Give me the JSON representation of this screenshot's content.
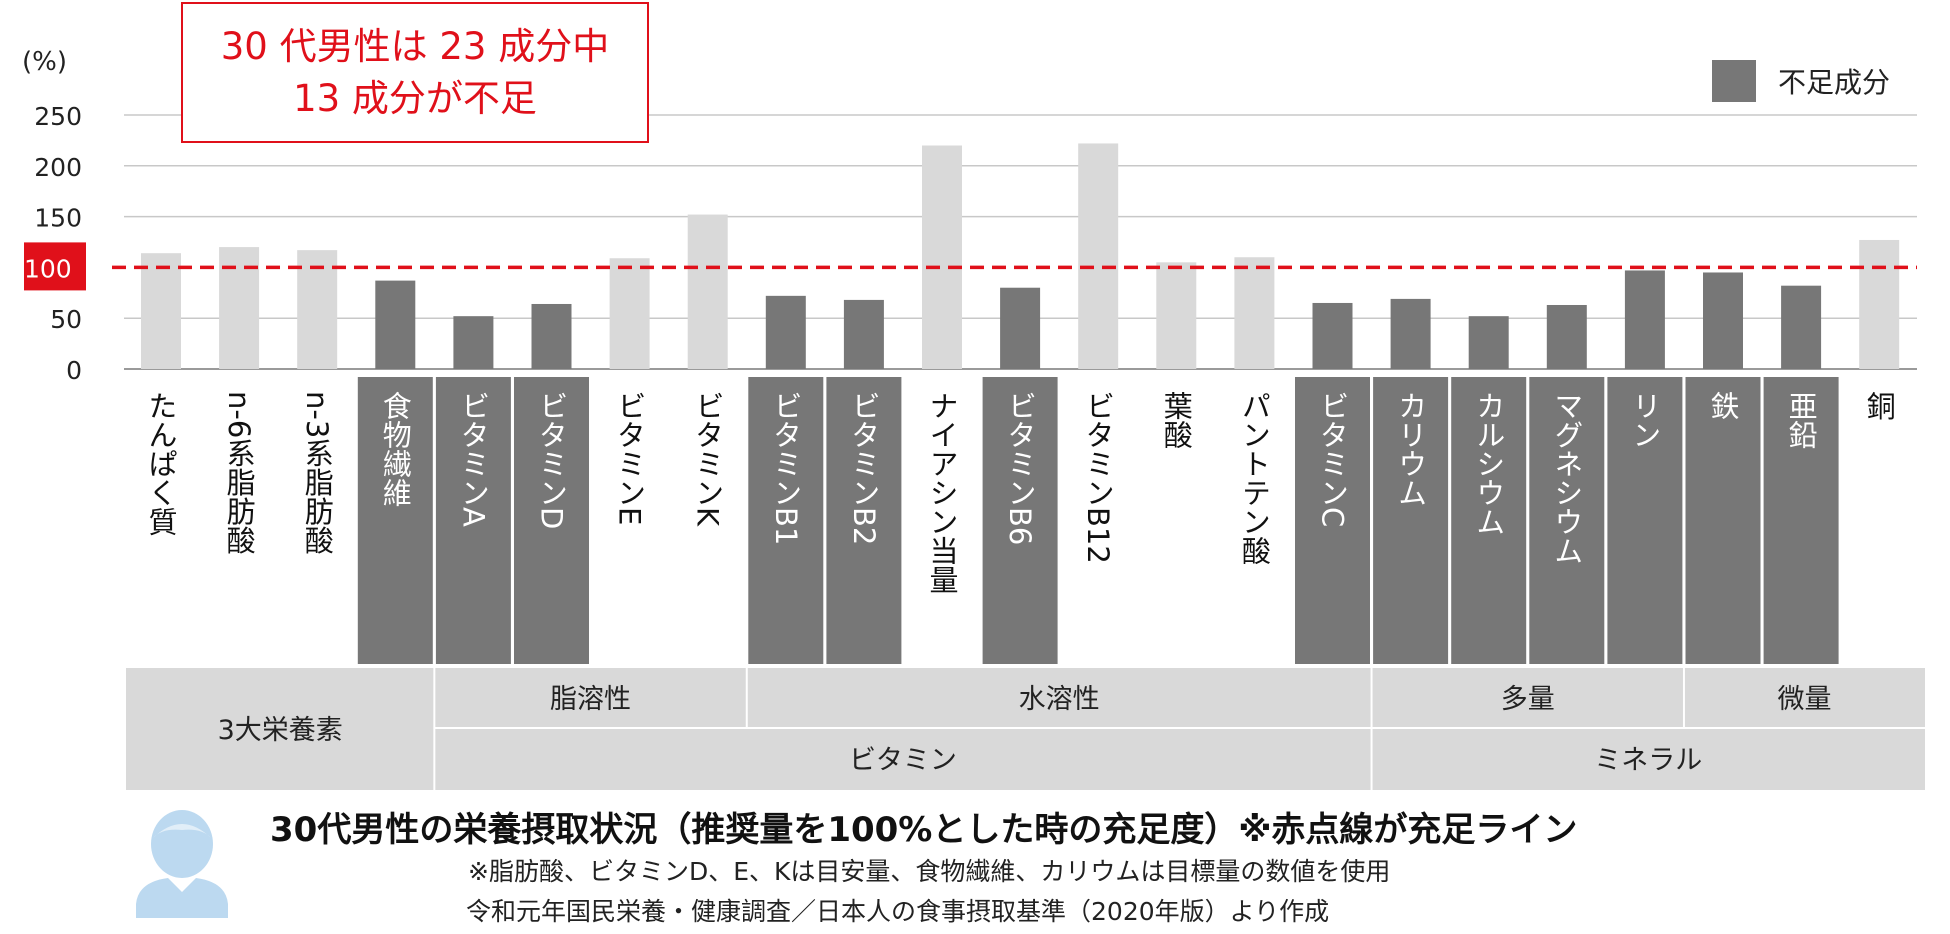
{
  "callout": {
    "line1": "30 代男性は 23 成分中",
    "line2": "13 成分が不足"
  },
  "legend": {
    "label": "不足成分"
  },
  "colors": {
    "deficient": "#777777",
    "sufficient": "#d9d9d9",
    "line": "#e0101a",
    "group_bg": "#d9d9d9"
  },
  "chart_data": {
    "type": "bar",
    "ylabel": "(%)",
    "ylim": [
      0,
      250
    ],
    "yticks": [
      "0",
      "50",
      "100",
      "150",
      "200",
      "250"
    ],
    "highlight_tick": "100",
    "reference_line": 100,
    "categories": [
      "たんぱく質",
      "n-6系脂肪酸",
      "n-3系脂肪酸",
      "食物繊維",
      "ビタミンA",
      "ビタミンD",
      "ビタミンE",
      "ビタミンK",
      "ビタミンB1",
      "ビタミンB2",
      "ナイアシン当量",
      "ビタミンB6",
      "ビタミンB12",
      "葉酸",
      "パントテン酸",
      "ビタミンC",
      "カリウム",
      "カルシウム",
      "マグネシウム",
      "リン",
      "鉄",
      "亜鉛",
      "銅"
    ],
    "values": [
      114,
      120,
      117,
      87,
      52,
      64,
      109,
      152,
      72,
      68,
      220,
      80,
      222,
      105,
      110,
      65,
      69,
      52,
      63,
      97,
      95,
      82,
      127
    ],
    "deficient": [
      false,
      false,
      false,
      true,
      true,
      true,
      false,
      false,
      true,
      true,
      false,
      true,
      false,
      false,
      false,
      true,
      true,
      true,
      true,
      true,
      true,
      true,
      false
    ],
    "groups_top": [
      {
        "label": "脂溶性",
        "start": 4,
        "end": 7
      },
      {
        "label": "水溶性",
        "start": 8,
        "end": 15
      },
      {
        "label": "多量",
        "start": 16,
        "end": 19
      },
      {
        "label": "微量",
        "start": 20,
        "end": 22
      }
    ],
    "groups_bottom": [
      {
        "label": "ビタミン",
        "start": 4,
        "end": 15
      },
      {
        "label": "ミネラル",
        "start": 16,
        "end": 22
      }
    ],
    "group_full": {
      "label": "3大栄養素",
      "start": 0,
      "end": 3
    }
  },
  "caption": {
    "title": "30代男性の栄養摂取状況（推奨量を100%とした時の充足度）※赤点線が充足ライン",
    "note1": "※脂肪酸、ビタミンD、E、Kは目安量、食物繊維、カリウムは目標量の数値を使用",
    "note2": "令和元年国民栄養・健康調査／日本人の食事摂取基準（2020年版）より作成"
  }
}
